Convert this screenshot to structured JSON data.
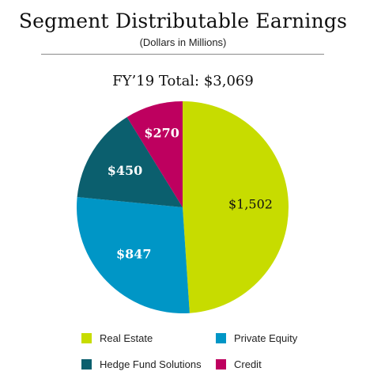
{
  "chart_data": {
    "type": "pie",
    "title": "Segment Distributable Earnings",
    "subtitle": "(Dollars in Millions)",
    "total_label": "FY’19 Total: $3,069",
    "slices": [
      {
        "name": "Real Estate",
        "value": 1502,
        "label": "$1,502",
        "color": "#c7dc00",
        "label_color": "#111111"
      },
      {
        "name": "Private Equity",
        "value": 847,
        "label": "$847",
        "color": "#0096c6",
        "label_color": "#ffffff"
      },
      {
        "name": "Hedge Fund Solutions",
        "value": 450,
        "label": "$450",
        "color": "#0b5f6e",
        "label_color": "#ffffff"
      },
      {
        "name": "Credit",
        "value": 270,
        "label": "$270",
        "color": "#be005f",
        "label_color": "#ffffff"
      }
    ],
    "legend": {
      "placement": "bottom",
      "items": [
        {
          "name": "Real Estate",
          "color": "#c7dc00"
        },
        {
          "name": "Private Equity",
          "color": "#0096c6"
        },
        {
          "name": "Hedge Fund Solutions",
          "color": "#0b5f6e"
        },
        {
          "name": "Credit",
          "color": "#be005f"
        }
      ]
    }
  }
}
